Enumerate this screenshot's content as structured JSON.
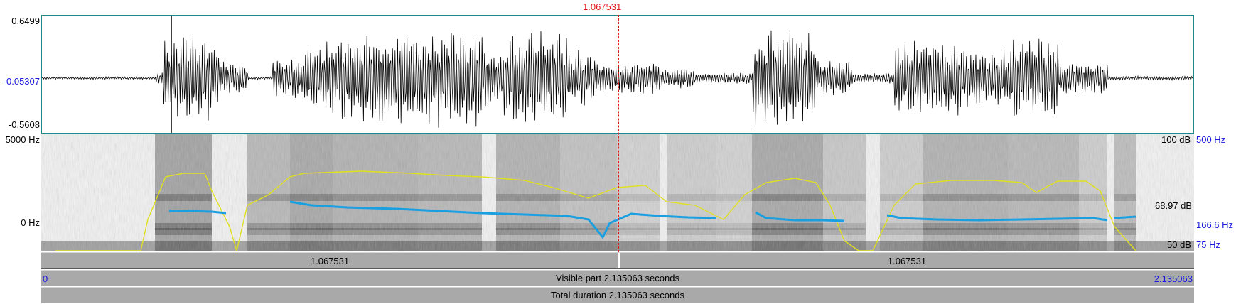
{
  "cursor": {
    "time": "1.067531"
  },
  "waveform": {
    "max_label": "0.6499",
    "mid_label": "-0.05307",
    "min_label": "-0.5608"
  },
  "spectrogram": {
    "freq_top_label": "5000 Hz",
    "freq_bottom_label": "0 Hz",
    "intensity_top_label": "100 dB",
    "intensity_mid_label": "68.97 dB",
    "intensity_bottom_label": "50 dB",
    "pitch_top_label": "500 Hz",
    "pitch_mid_label": "166.6 Hz",
    "pitch_bottom_label": "75 Hz"
  },
  "selection_bar": {
    "left_duration": "1.067531",
    "right_duration": "1.067531"
  },
  "visible_bar": {
    "start": "0",
    "text": "Visible part 2.135063 seconds",
    "end": "2.135063"
  },
  "total_bar": {
    "text": "Total duration 2.135063 seconds"
  },
  "colors": {
    "pitch": "#1a9fe0",
    "intensity": "#e0e020",
    "cursor": "#e01818",
    "waveform_frame": "#1a8a8a"
  }
}
